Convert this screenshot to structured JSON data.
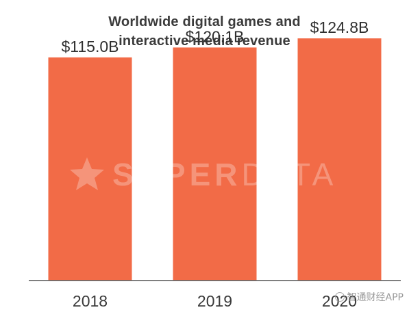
{
  "title_lines": [
    "Worldwide digital games and",
    "interactive media revenue"
  ],
  "watermark": {
    "text_bold": "SUPER",
    "text_light": "DATA"
  },
  "corner_watermark": "智通财经APP",
  "colors": {
    "bar": "#f26b47",
    "axis": "#555555",
    "text": "#3a3a3a"
  },
  "chart_data": {
    "type": "bar",
    "title": "Worldwide digital games and interactive media revenue",
    "xlabel": "",
    "ylabel": "",
    "categories": [
      "2018",
      "2019",
      "2020"
    ],
    "values": [
      115.0,
      120.1,
      124.8
    ],
    "value_labels": [
      "$115.0B",
      "$120.1B",
      "$124.8B"
    ],
    "ylim": [
      0,
      134
    ],
    "grid": false,
    "legend": "none"
  }
}
